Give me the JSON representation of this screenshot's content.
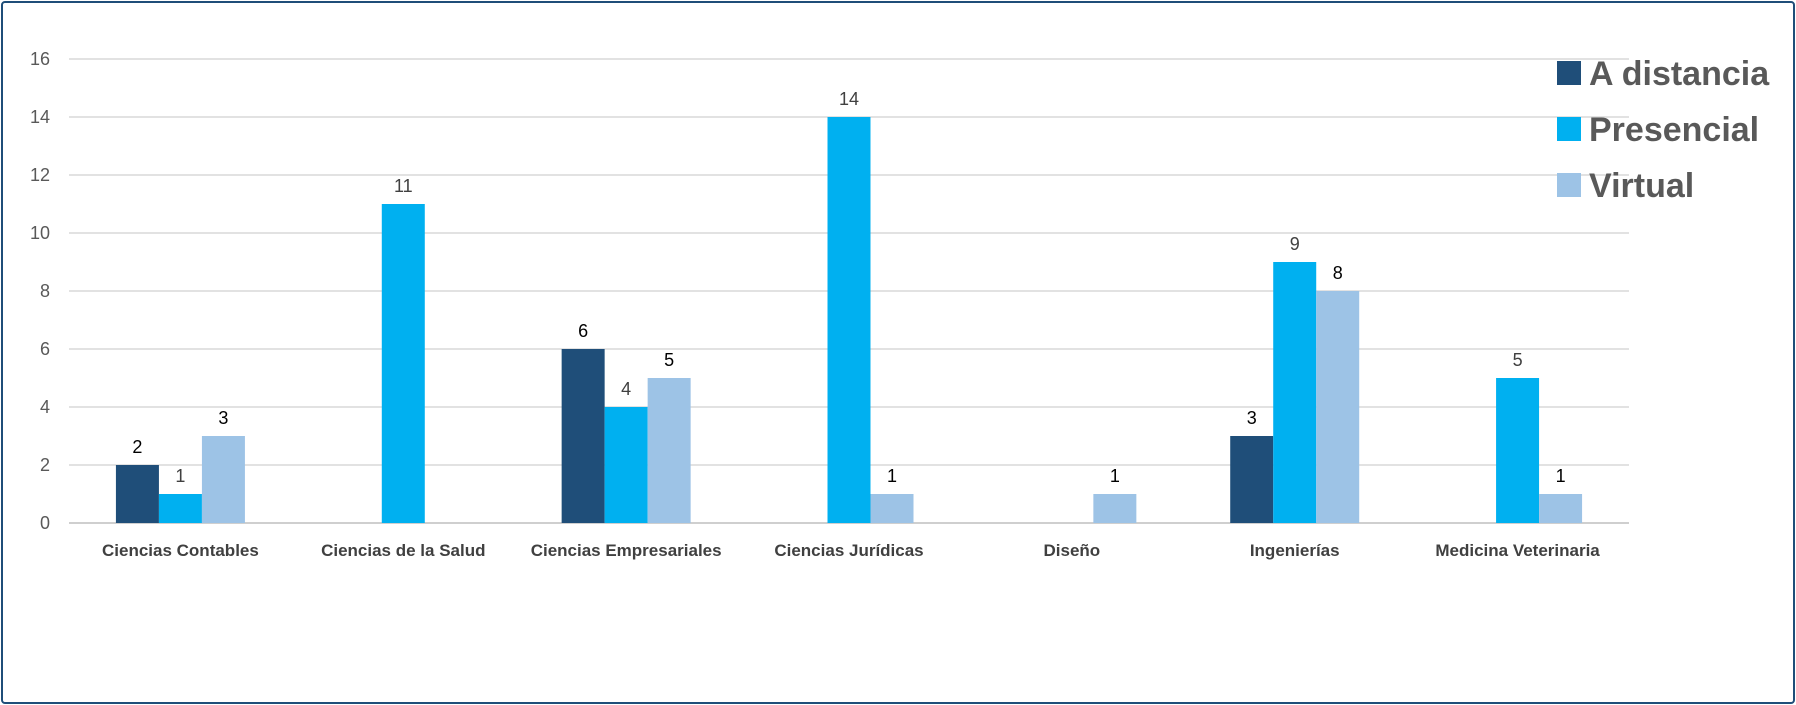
{
  "chart_data": {
    "type": "bar",
    "title": "",
    "xlabel": "",
    "ylabel": "",
    "ylim": [
      0,
      16
    ],
    "yticks": [
      0,
      2,
      4,
      6,
      8,
      10,
      12,
      14,
      16
    ],
    "grid": true,
    "legend_position": "top-right",
    "categories": [
      "Ciencias Contables",
      "Ciencias de la Salud",
      "Ciencias Empresariales",
      "Ciencias Jurídicas",
      "Diseño",
      "Ingenierías",
      "Medicina Veterinaria"
    ],
    "series": [
      {
        "name": "A distancia",
        "color": "#1f4e79",
        "label_color": "#000000",
        "values": [
          2,
          null,
          6,
          null,
          null,
          3,
          null
        ]
      },
      {
        "name": "Presencial",
        "color": "#00b0f0",
        "label_color": "#404040",
        "values": [
          1,
          11,
          4,
          14,
          null,
          9,
          5
        ]
      },
      {
        "name": "Virtual",
        "color": "#9dc3e6",
        "label_color": "#000000",
        "values": [
          3,
          null,
          5,
          1,
          1,
          8,
          1
        ]
      }
    ]
  },
  "colors": {
    "frame_border": "#1f4e79",
    "gridline": "#d9d9d9",
    "axis_text": "#595959"
  }
}
